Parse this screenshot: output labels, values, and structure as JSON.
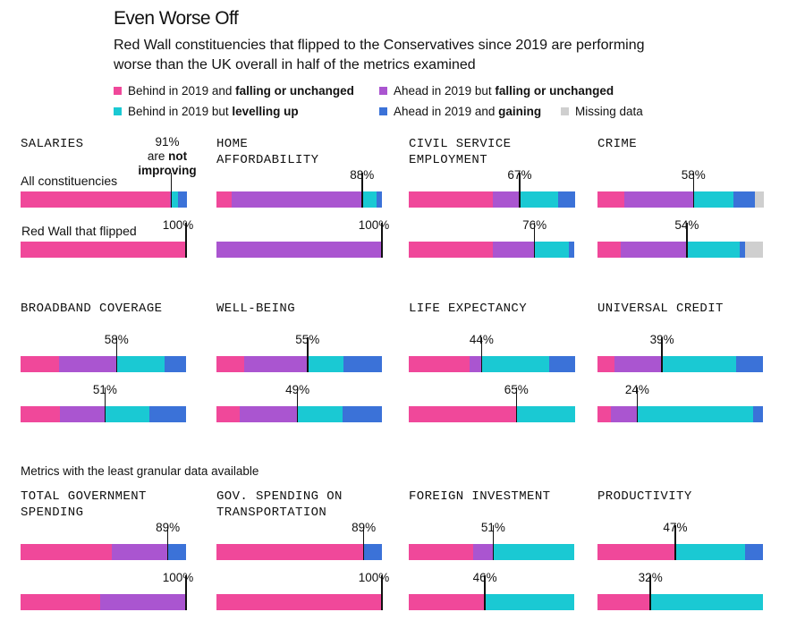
{
  "title": "Even Worse Off",
  "subtitle": "Red Wall constituencies that flipped to the Conservatives since 2019 are performing worse than the UK overall in half of the metrics examined",
  "legend": [
    {
      "color": "#f0489a",
      "pre": "Behind in 2019 and ",
      "bold": "falling or unchanged"
    },
    {
      "color": "#aa55d0",
      "pre": "Ahead in 2019 but ",
      "bold": "falling or unchanged"
    },
    {
      "color": "#1ac9d3",
      "pre": "Behind in 2019 but ",
      "bold": "levelling up"
    },
    {
      "color": "#3b72d8",
      "pre": "Ahead in 2019 and ",
      "bold": "gaining"
    },
    {
      "color": "#cfcfcf",
      "pre": "Missing data",
      "bold": ""
    }
  ],
  "row_labels": {
    "all": "All constituencies",
    "redwall": "Red Wall that flipped"
  },
  "callout": {
    "line1": "91%",
    "line2": "are ",
    "line2_bold": "not",
    "line3": "improving"
  },
  "least_granular_note": "Metrics with the least granular data available",
  "chart_data": {
    "type": "bar",
    "stacked": true,
    "categories": [
      "Behind in 2019 and falling or unchanged",
      "Ahead in 2019 but falling or unchanged",
      "Behind in 2019 but levelling up",
      "Ahead in 2019 and gaining",
      "Missing data"
    ],
    "colors": [
      "#f0489a",
      "#aa55d0",
      "#1ac9d3",
      "#3b72d8",
      "#cfcfcf"
    ],
    "panels": [
      {
        "title": "SALARIES",
        "all": {
          "values": [
            90,
            1,
            4,
            5,
            0
          ],
          "label": "91%"
        },
        "redwall": {
          "values": [
            100,
            0,
            0,
            0,
            0
          ],
          "label": "100%"
        }
      },
      {
        "title": "HOME\nAFFORDABILITY",
        "all": {
          "values": [
            9,
            79,
            9,
            3,
            0
          ],
          "label": "88%"
        },
        "redwall": {
          "values": [
            0,
            100,
            0,
            0,
            0
          ],
          "label": "100%"
        }
      },
      {
        "title": "CIVIL SERVICE\nEMPLOYMENT",
        "all": {
          "values": [
            51,
            16,
            23,
            10,
            0
          ],
          "label": "67%"
        },
        "redwall": {
          "values": [
            51,
            25,
            21,
            3,
            0
          ],
          "label": "76%"
        }
      },
      {
        "title": "CRIME",
        "all": {
          "values": [
            16,
            42,
            24,
            13,
            5
          ],
          "label": "58%"
        },
        "redwall": {
          "values": [
            14,
            40,
            32,
            3,
            11
          ],
          "label": "54%"
        }
      },
      {
        "title": "BROADBAND COVERAGE",
        "all": {
          "values": [
            23,
            35,
            29,
            13,
            0
          ],
          "label": "58%"
        },
        "redwall": {
          "values": [
            24,
            27,
            27,
            22,
            0
          ],
          "label": "51%"
        }
      },
      {
        "title": "WELL-BEING",
        "all": {
          "values": [
            17,
            38,
            22,
            23,
            0
          ],
          "label": "55%"
        },
        "redwall": {
          "values": [
            14,
            35,
            27,
            24,
            0
          ],
          "label": "49%"
        }
      },
      {
        "title": "LIFE EXPECTANCY",
        "all": {
          "values": [
            37,
            7,
            41,
            15,
            0
          ],
          "label": "44%"
        },
        "redwall": {
          "values": [
            65,
            0,
            35,
            0,
            0
          ],
          "label": "65%"
        }
      },
      {
        "title": "UNIVERSAL CREDIT",
        "all": {
          "values": [
            10,
            29,
            45,
            16,
            0
          ],
          "label": "39%"
        },
        "redwall": {
          "values": [
            8,
            16,
            70,
            6,
            0
          ],
          "label": "24%"
        }
      },
      {
        "title": "TOTAL GOVERNMENT\nSPENDING",
        "all": {
          "values": [
            55,
            34,
            0,
            11,
            0
          ],
          "label": "89%"
        },
        "redwall": {
          "values": [
            48,
            52,
            0,
            0,
            0
          ],
          "label": "100%"
        }
      },
      {
        "title": "GOV. SPENDING ON\nTRANSPORTATION",
        "all": {
          "values": [
            89,
            0,
            0,
            11,
            0
          ],
          "label": "89%"
        },
        "redwall": {
          "values": [
            100,
            0,
            0,
            0,
            0
          ],
          "label": "100%"
        }
      },
      {
        "title": "FOREIGN INVESTMENT",
        "all": {
          "values": [
            39,
            12,
            49,
            0,
            0
          ],
          "label": "51%"
        },
        "redwall": {
          "values": [
            46,
            0,
            54,
            0,
            0
          ],
          "label": "46%"
        }
      },
      {
        "title": "PRODUCTIVITY",
        "all": {
          "values": [
            47,
            0,
            42,
            11,
            0
          ],
          "label": "47%"
        },
        "redwall": {
          "values": [
            32,
            0,
            68,
            0,
            0
          ],
          "label": "32%"
        }
      }
    ]
  }
}
